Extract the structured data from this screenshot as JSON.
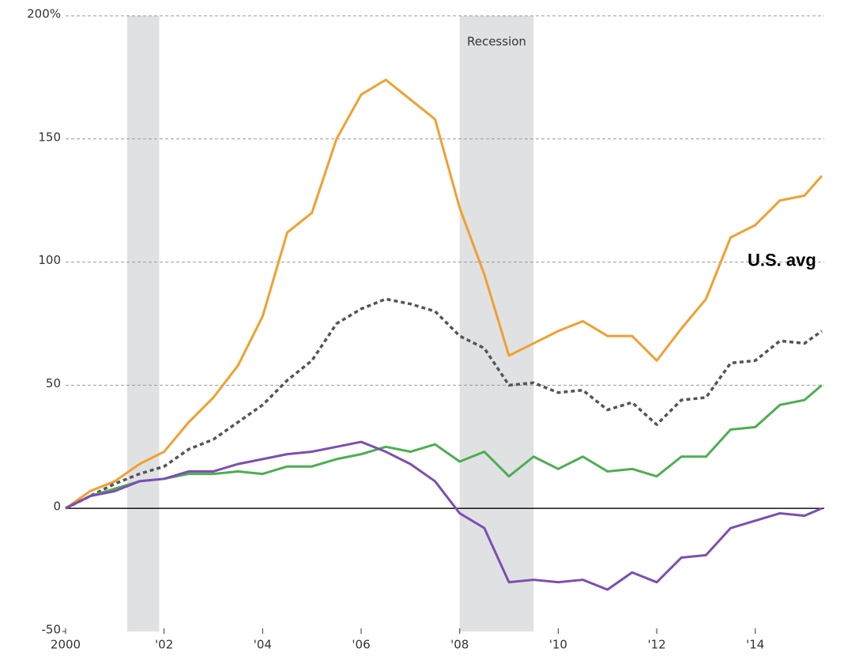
{
  "chart_data": {
    "type": "line",
    "x": [
      2000,
      2000.5,
      2001,
      2001.5,
      2002,
      2002.5,
      2003,
      2003.5,
      2004,
      2004.5,
      2005,
      2005.5,
      2006,
      2006.5,
      2007,
      2007.5,
      2008,
      2008.5,
      2009,
      2009.5,
      2010,
      2010.5,
      2011,
      2011.5,
      2012,
      2012.5,
      2013,
      2013.5,
      2014,
      2014.5,
      2015,
      2015.35
    ],
    "series": [
      {
        "color": "#f0a030",
        "values": [
          0,
          7,
          11,
          18,
          23,
          35,
          45,
          58,
          78,
          112,
          120,
          150,
          168,
          174,
          166,
          158,
          122,
          95,
          62,
          67,
          72,
          76,
          70,
          70,
          60,
          73,
          85,
          110,
          115,
          125,
          127,
          135
        ]
      },
      {
        "name": "U.S. avg",
        "color": "#555555",
        "dashed": true,
        "values": [
          0,
          5,
          10,
          14,
          17,
          24,
          28,
          35,
          42,
          52,
          60,
          75,
          81,
          85,
          83,
          80,
          70,
          65,
          50,
          51,
          47,
          48,
          40,
          43,
          34,
          44,
          45,
          59,
          60,
          68,
          67,
          72
        ]
      },
      {
        "color": "#4caf50",
        "values": [
          0,
          5,
          8,
          11,
          12,
          14,
          14,
          15,
          14,
          17,
          17,
          20,
          22,
          25,
          23,
          26,
          19,
          23,
          13,
          21,
          16,
          21,
          15,
          16,
          13,
          21,
          21,
          32,
          33,
          42,
          44,
          50
        ]
      },
      {
        "color": "#7b4fb0",
        "values": [
          0,
          5,
          7,
          11,
          12,
          15,
          15,
          18,
          20,
          22,
          23,
          25,
          27,
          23,
          18,
          11,
          -2,
          -8,
          -30,
          -29,
          -30,
          -29,
          -33,
          -26,
          -30,
          -20,
          -19,
          -8,
          -5,
          -2,
          -3,
          0
        ]
      }
    ],
    "recessions": [
      [
        2001.25,
        2001.9
      ],
      [
        2008,
        2009.5
      ]
    ],
    "recession_label": "Recession",
    "xlim": [
      2000,
      2015.4
    ],
    "xticks": [
      2000,
      {
        "value": 2002,
        "label": "'02"
      },
      {
        "value": 2004,
        "label": "'04"
      },
      {
        "value": 2006,
        "label": "'06"
      },
      {
        "value": 2008,
        "label": "'08"
      },
      {
        "value": 2010,
        "label": "'10"
      },
      {
        "value": 2012,
        "label": "'12"
      },
      {
        "value": 2014,
        "label": "'14"
      }
    ],
    "ylim": [
      -50,
      200
    ],
    "yticks": [
      -50,
      0,
      50,
      100,
      150,
      {
        "value": 200,
        "label": "200%"
      }
    ],
    "grid": true
  }
}
